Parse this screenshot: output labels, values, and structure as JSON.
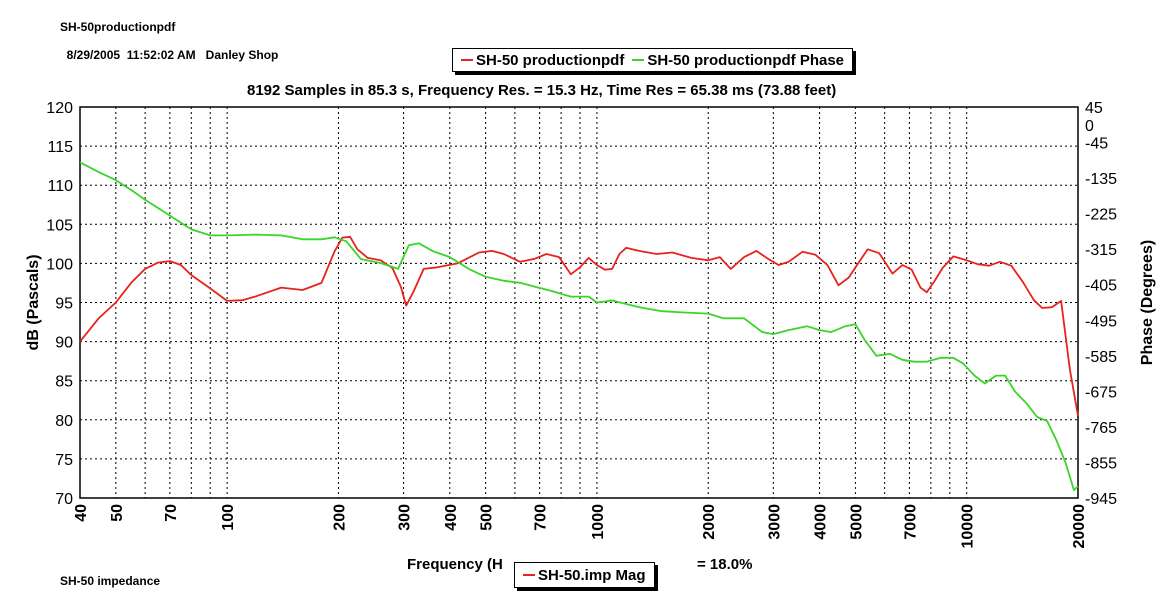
{
  "header": {
    "file_name": "SH-50productionpdf",
    "timestamp": "8/29/2005  11:52:02 AM",
    "location": "Danley Shop"
  },
  "footer": {
    "label": "SH-50 impedance",
    "bottom_legend": "SH-50.imp Mag",
    "xlabel_left": "Frequency (H",
    "xlabel_right": "= 18.0%"
  },
  "colors": {
    "magnitude": "#e8231e",
    "phase": "#3bd42a",
    "grid": "#000000"
  },
  "chart_data": {
    "type": "line",
    "title": "8192 Samples in 85.3 s, Frequency Res. = 15.3 Hz, Time Res = 65.38 ms (73.88 feet)",
    "xlabel": "Frequency (Hz)",
    "ylabel": "dB (Pascals)",
    "y2label": "Phase (Degrees)",
    "xscale": "log",
    "xlim": [
      40,
      20000
    ],
    "ylim": [
      70,
      120
    ],
    "y2lim": [
      -945,
      45
    ],
    "grid": true,
    "legend": "top-center",
    "x_ticks": [
      40,
      50,
      70,
      100,
      200,
      300,
      400,
      500,
      700,
      1000,
      2000,
      3000,
      4000,
      5000,
      7000,
      10000,
      20000
    ],
    "y_ticks": [
      70,
      75,
      80,
      85,
      90,
      95,
      100,
      105,
      110,
      115,
      120
    ],
    "y2_ticks": [
      45,
      0,
      -45,
      -135,
      -225,
      -315,
      -405,
      -495,
      -585,
      -675,
      -765,
      -855,
      -945
    ],
    "series": [
      {
        "name": "SH-50 productionpdf",
        "axis": "left",
        "x": [
          40,
          45,
          50,
          55,
          60,
          65,
          70,
          75,
          80,
          90,
          100,
          110,
          120,
          140,
          160,
          180,
          195,
          205,
          215,
          225,
          240,
          260,
          280,
          295,
          305,
          320,
          340,
          370,
          420,
          480,
          520,
          560,
          620,
          680,
          730,
          790,
          850,
          900,
          950,
          1000,
          1050,
          1100,
          1150,
          1200,
          1300,
          1450,
          1600,
          1800,
          2000,
          2150,
          2300,
          2500,
          2700,
          2900,
          3100,
          3300,
          3600,
          3900,
          4200,
          4500,
          4800,
          5100,
          5400,
          5800,
          6300,
          6700,
          7100,
          7500,
          7800,
          8200,
          8600,
          9200,
          10000,
          10700,
          11500,
          12300,
          13200,
          14200,
          15200,
          16000,
          17000,
          18000,
          19000,
          20000
        ],
        "values": [
          90,
          93,
          95,
          97.5,
          99.3,
          100.1,
          100.3,
          99.8,
          98.5,
          96.8,
          95.2,
          95.3,
          95.8,
          96.9,
          96.6,
          97.5,
          101.5,
          103.3,
          103.4,
          101.8,
          100.7,
          100.4,
          99.4,
          97,
          94.6,
          96.5,
          99.3,
          99.5,
          100,
          101.4,
          101.6,
          101.2,
          100.2,
          100.6,
          101.2,
          100.8,
          98.6,
          99.5,
          100.7,
          99.8,
          99.2,
          99.3,
          101.2,
          102,
          101.6,
          101.2,
          101.4,
          100.7,
          100.4,
          100.8,
          99.3,
          100.8,
          101.6,
          100.6,
          99.8,
          100.2,
          101.5,
          101.1,
          99.8,
          97.2,
          98.2,
          100.1,
          101.8,
          101.3,
          98.7,
          99.8,
          99.2,
          96.9,
          96.3,
          97.8,
          99.4,
          100.9,
          100.4,
          99.9,
          99.7,
          100.2,
          99.7,
          97.6,
          95.3,
          94.3,
          94.4,
          95.2,
          86.5,
          80.5
        ]
      },
      {
        "name": "SH-50 productionpdf Phase",
        "axis": "right",
        "x": [
          40,
          45,
          50,
          55,
          60,
          70,
          80,
          90,
          100,
          120,
          140,
          160,
          180,
          195,
          210,
          230,
          260,
          290,
          310,
          330,
          360,
          400,
          450,
          500,
          560,
          620,
          680,
          750,
          850,
          950,
          1000,
          1100,
          1300,
          1500,
          1700,
          2000,
          2200,
          2500,
          2800,
          3000,
          3300,
          3700,
          4000,
          4300,
          4700,
          5000,
          5300,
          5700,
          6200,
          6700,
          7200,
          7800,
          8500,
          9200,
          9800,
          10500,
          11200,
          12000,
          12700,
          13500,
          14500,
          15500,
          16500,
          17500,
          18500,
          19500,
          20000
        ],
        "values": [
          -95,
          -120,
          -140,
          -165,
          -190,
          -230,
          -265,
          -280,
          -280,
          -278,
          -280,
          -290,
          -290,
          -285,
          -295,
          -340,
          -350,
          -365,
          -305,
          -300,
          -320,
          -335,
          -365,
          -385,
          -395,
          -400,
          -410,
          -420,
          -435,
          -435,
          -450,
          -445,
          -462,
          -472,
          -475,
          -478,
          -490,
          -490,
          -525,
          -530,
          -520,
          -510,
          -520,
          -525,
          -510,
          -505,
          -545,
          -585,
          -580,
          -595,
          -600,
          -600,
          -590,
          -590,
          -605,
          -635,
          -655,
          -635,
          -635,
          -675,
          -705,
          -740,
          -750,
          -800,
          -855,
          -925,
          -915
        ]
      }
    ]
  }
}
